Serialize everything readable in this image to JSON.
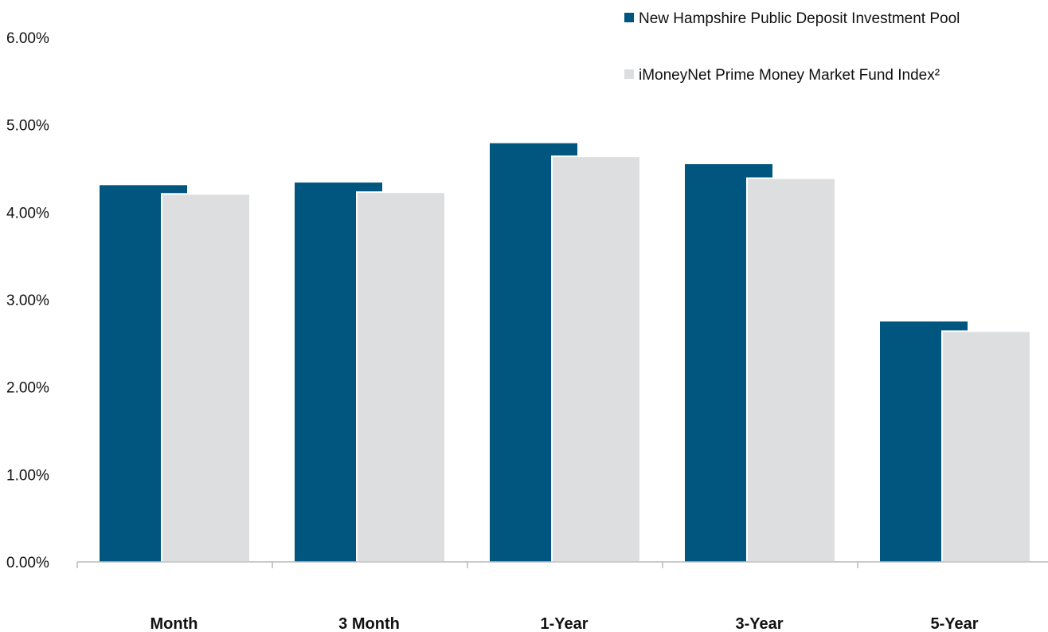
{
  "chart_data": {
    "type": "bar",
    "categories": [
      "Month",
      "3 Month",
      "1-Year",
      "3-Year",
      "5-Year"
    ],
    "series": [
      {
        "name": "New Hampshire Public Deposit Investment Pool",
        "values": [
          4.31,
          4.34,
          4.79,
          4.55,
          2.75
        ],
        "color": "#00567f"
      },
      {
        "name": "iMoneyNet Prime Money Market Fund Index²",
        "values": [
          4.21,
          4.23,
          4.64,
          4.39,
          2.64
        ],
        "color": "#dddee0"
      }
    ],
    "ylim": [
      0,
      6
    ],
    "yticks": [
      0,
      1,
      2,
      3,
      4,
      5,
      6
    ],
    "ytick_labels": [
      "0.00%",
      "1.00%",
      "2.00%",
      "3.00%",
      "4.00%",
      "5.00%",
      "6.00%"
    ],
    "title": "",
    "xlabel": "",
    "ylabel": "",
    "grid": false,
    "legend_position": "top-right"
  }
}
